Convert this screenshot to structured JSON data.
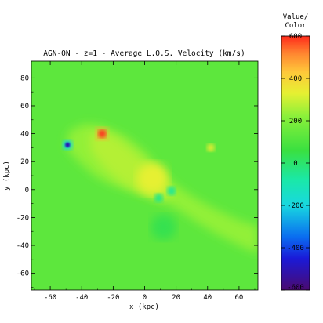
{
  "chart_data": {
    "type": "heatmap",
    "title": "AGN-ON - z=1 - Average L.O.S. Velocity (km/s)",
    "xlabel": "x (kpc)",
    "ylabel": "y (kpc)",
    "xlim": [
      -72,
      72
    ],
    "ylim": [
      -72,
      92
    ],
    "x_ticks": [
      -60,
      -40,
      -20,
      0,
      20,
      40,
      60
    ],
    "y_ticks": [
      -60,
      -40,
      -20,
      0,
      20,
      40,
      60,
      80
    ],
    "colorbar": {
      "title_line1": "Value/",
      "title_line2": "Color",
      "range": [
        -600,
        600
      ],
      "ticks": [
        -600,
        -400,
        -200,
        0,
        200,
        400,
        600
      ],
      "stops": [
        {
          "value": -600,
          "color": "#4b0a70"
        },
        {
          "value": -450,
          "color": "#1a1ad8"
        },
        {
          "value": -350,
          "color": "#0a6cf0"
        },
        {
          "value": -200,
          "color": "#18d8e0"
        },
        {
          "value": -80,
          "color": "#1ae8a8"
        },
        {
          "value": 60,
          "color": "#3ae040"
        },
        {
          "value": 220,
          "color": "#8af03a"
        },
        {
          "value": 330,
          "color": "#e6f032"
        },
        {
          "value": 430,
          "color": "#ffc83a"
        },
        {
          "value": 520,
          "color": "#ff8430"
        },
        {
          "value": 600,
          "color": "#ff2a1a"
        }
      ]
    },
    "background_value": 130,
    "features": [
      {
        "kind": "region",
        "value": 230,
        "points": [
          [
            -48,
            42
          ],
          [
            -38,
            47
          ],
          [
            -28,
            46
          ],
          [
            -20,
            42
          ],
          [
            -12,
            38
          ],
          [
            -5,
            32
          ],
          [
            2,
            25
          ],
          [
            10,
            14
          ],
          [
            20,
            3
          ],
          [
            32,
            -6
          ],
          [
            45,
            -14
          ],
          [
            60,
            -22
          ],
          [
            72,
            -26
          ],
          [
            72,
            -46
          ],
          [
            60,
            -40
          ],
          [
            46,
            -32
          ],
          [
            34,
            -24
          ],
          [
            22,
            -15
          ],
          [
            10,
            -7
          ],
          [
            0,
            -3
          ],
          [
            -12,
            0
          ],
          [
            -22,
            4
          ],
          [
            -32,
            10
          ],
          [
            -42,
            20
          ],
          [
            -50,
            30
          ]
        ]
      },
      {
        "kind": "region",
        "value": 270,
        "points": [
          [
            -35,
            40
          ],
          [
            -26,
            41
          ],
          [
            -18,
            37
          ],
          [
            -10,
            30
          ],
          [
            -2,
            22
          ],
          [
            8,
            12
          ],
          [
            14,
            4
          ],
          [
            18,
            -4
          ],
          [
            10,
            -8
          ],
          [
            0,
            -4
          ],
          [
            -10,
            2
          ],
          [
            -18,
            8
          ],
          [
            -26,
            16
          ],
          [
            -34,
            28
          ]
        ]
      },
      {
        "kind": "spot",
        "x": 5,
        "y": 8,
        "radius": 10,
        "value": 330
      },
      {
        "kind": "spot",
        "x": 42,
        "y": 30,
        "radius": 2.5,
        "value": 340
      },
      {
        "kind": "spot",
        "x": 17,
        "y": -1,
        "radius": 2.8,
        "value": -60
      },
      {
        "kind": "spot",
        "x": 9,
        "y": -6,
        "radius": 2.8,
        "value": -40
      },
      {
        "kind": "spot",
        "x": 12,
        "y": -27,
        "radius": 8,
        "value": 40
      },
      {
        "kind": "spot",
        "x": -49,
        "y": 32,
        "radius": 3.2,
        "value": -180
      },
      {
        "kind": "spot",
        "x": -49,
        "y": 32,
        "radius": 1.6,
        "value": -500
      },
      {
        "kind": "spot",
        "x": -27,
        "y": 40,
        "radius": 4,
        "value": 470
      },
      {
        "kind": "spot",
        "x": -27,
        "y": 40,
        "radius": 2.6,
        "value": 600
      }
    ]
  }
}
